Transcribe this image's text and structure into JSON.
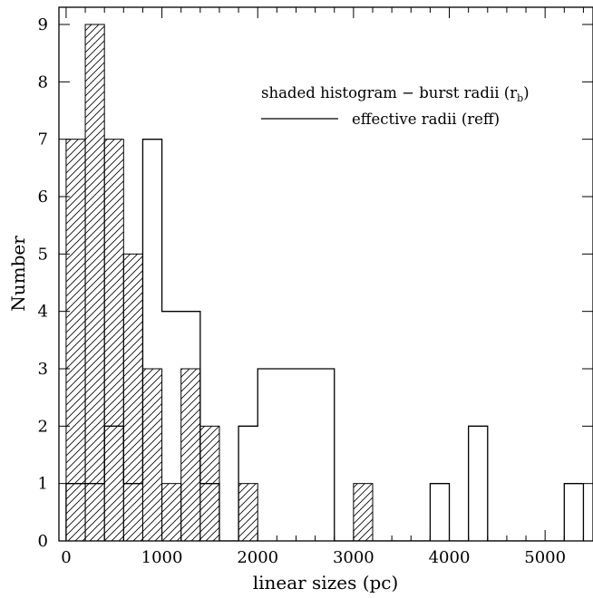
{
  "chart_data": {
    "type": "bar",
    "title": "",
    "xlabel": "linear sizes (pc)",
    "ylabel": "Number",
    "xlim": [
      -75,
      5500
    ],
    "ylim": [
      0,
      9.3
    ],
    "xticks_major": [
      0,
      1000,
      2000,
      3000,
      4000,
      5000
    ],
    "xticks_minor": [
      200,
      400,
      600,
      800,
      1200,
      1400,
      1600,
      1800,
      2200,
      2400,
      2600,
      2800,
      3200,
      3400,
      3600,
      3800,
      4200,
      4400,
      4600,
      4800,
      5200,
      5400
    ],
    "yticks_major": [
      0,
      1,
      2,
      3,
      4,
      5,
      6,
      7,
      8,
      9
    ],
    "bin_width": 200,
    "grid": false,
    "legend_position": "top-right",
    "series": [
      {
        "name": "shaded histogram − burst radii (r_b)",
        "style": "hatched",
        "bins": [
          {
            "x0": 0,
            "x1": 200,
            "count": 7
          },
          {
            "x0": 200,
            "x1": 400,
            "count": 9
          },
          {
            "x0": 400,
            "x1": 600,
            "count": 7
          },
          {
            "x0": 600,
            "x1": 800,
            "count": 5
          },
          {
            "x0": 800,
            "x1": 1000,
            "count": 3
          },
          {
            "x0": 1000,
            "x1": 1200,
            "count": 1
          },
          {
            "x0": 1200,
            "x1": 1400,
            "count": 3
          },
          {
            "x0": 1400,
            "x1": 1600,
            "count": 2
          },
          {
            "x0": 1800,
            "x1": 2000,
            "count": 1
          },
          {
            "x0": 3000,
            "x1": 3200,
            "count": 1
          }
        ]
      },
      {
        "name": "effective radii (reff)",
        "style": "outline",
        "bins": [
          {
            "x0": 0,
            "x1": 200,
            "count": 1
          },
          {
            "x0": 200,
            "x1": 400,
            "count": 1
          },
          {
            "x0": 400,
            "x1": 600,
            "count": 2
          },
          {
            "x0": 600,
            "x1": 800,
            "count": 1
          },
          {
            "x0": 800,
            "x1": 1000,
            "count": 7
          },
          {
            "x0": 1000,
            "x1": 1200,
            "count": 4
          },
          {
            "x0": 1200,
            "x1": 1400,
            "count": 4
          },
          {
            "x0": 1400,
            "x1": 1600,
            "count": 1
          },
          {
            "x0": 1600,
            "x1": 1800,
            "count": 0
          },
          {
            "x0": 1800,
            "x1": 2000,
            "count": 2
          },
          {
            "x0": 2000,
            "x1": 2200,
            "count": 3
          },
          {
            "x0": 2200,
            "x1": 2400,
            "count": 3
          },
          {
            "x0": 2400,
            "x1": 2600,
            "count": 3
          },
          {
            "x0": 2600,
            "x1": 2800,
            "count": 3
          },
          {
            "x0": 2800,
            "x1": 3000,
            "count": 0
          },
          {
            "x0": 3000,
            "x1": 3200,
            "count": 0
          },
          {
            "x0": 3200,
            "x1": 3400,
            "count": 0
          },
          {
            "x0": 3400,
            "x1": 3600,
            "count": 0
          },
          {
            "x0": 3600,
            "x1": 3800,
            "count": 0
          },
          {
            "x0": 3800,
            "x1": 4000,
            "count": 1
          },
          {
            "x0": 4000,
            "x1": 4200,
            "count": 0
          },
          {
            "x0": 4200,
            "x1": 4400,
            "count": 2
          },
          {
            "x0": 4400,
            "x1": 4600,
            "count": 0
          },
          {
            "x0": 4600,
            "x1": 4800,
            "count": 0
          },
          {
            "x0": 4800,
            "x1": 5000,
            "count": 0
          },
          {
            "x0": 5000,
            "x1": 5200,
            "count": 0
          },
          {
            "x0": 5200,
            "x1": 5400,
            "count": 1
          }
        ]
      }
    ],
    "legend": {
      "hatched_label_main": "shaded histogram − burst radii (r",
      "hatched_label_sub": "b",
      "hatched_label_end": ")",
      "outline_label": "effective radii (reff)"
    }
  }
}
